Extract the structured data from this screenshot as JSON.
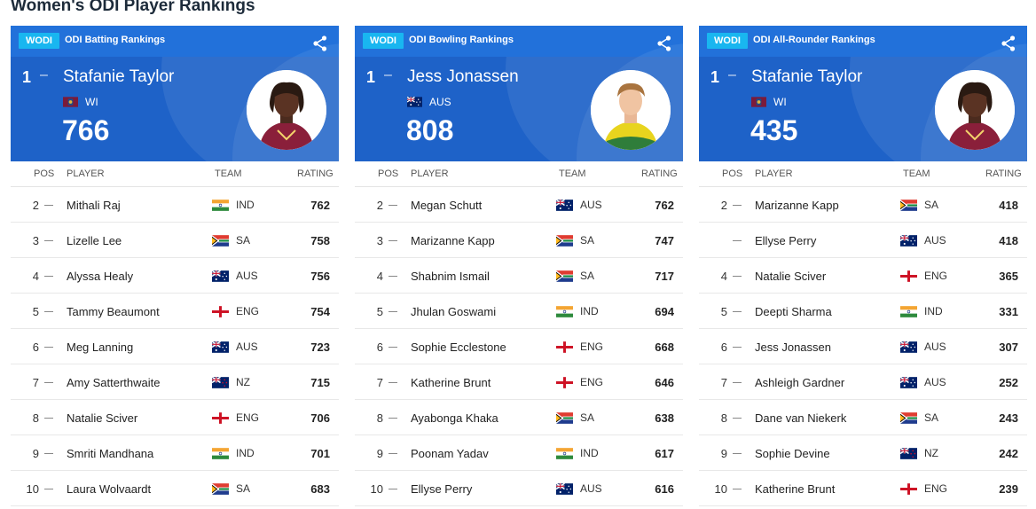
{
  "page": {
    "title": "Women's ODI Player Rankings"
  },
  "colors": {
    "hero": "#1e62c8",
    "topbar": "#2271da",
    "badge": "#19b6f0"
  },
  "headers": {
    "pos": "POS",
    "player": "PLAYER",
    "team": "TEAM",
    "rating": "RATING"
  },
  "cards": [
    {
      "badge": "WODI",
      "title": "ODI Batting Rankings",
      "leader": {
        "pos": "1",
        "name": "Stafanie Taylor",
        "team": "WI",
        "flag": "wi",
        "rating": "766",
        "avatar": "player-photo-wi"
      },
      "rows": [
        {
          "pos": "2",
          "name": "Mithali Raj",
          "team": "IND",
          "flag": "ind",
          "rating": "762"
        },
        {
          "pos": "3",
          "name": "Lizelle Lee",
          "team": "SA",
          "flag": "sa",
          "rating": "758"
        },
        {
          "pos": "4",
          "name": "Alyssa Healy",
          "team": "AUS",
          "flag": "aus",
          "rating": "756"
        },
        {
          "pos": "5",
          "name": "Tammy Beaumont",
          "team": "ENG",
          "flag": "eng",
          "rating": "754"
        },
        {
          "pos": "6",
          "name": "Meg Lanning",
          "team": "AUS",
          "flag": "aus",
          "rating": "723"
        },
        {
          "pos": "7",
          "name": "Amy Satterthwaite",
          "team": "NZ",
          "flag": "nz",
          "rating": "715"
        },
        {
          "pos": "8",
          "name": "Natalie Sciver",
          "team": "ENG",
          "flag": "eng",
          "rating": "706"
        },
        {
          "pos": "9",
          "name": "Smriti Mandhana",
          "team": "IND",
          "flag": "ind",
          "rating": "701"
        },
        {
          "pos": "10",
          "name": "Laura Wolvaardt",
          "team": "SA",
          "flag": "sa",
          "rating": "683"
        }
      ]
    },
    {
      "badge": "WODI",
      "title": "ODI Bowling Rankings",
      "leader": {
        "pos": "1",
        "name": "Jess Jonassen",
        "team": "AUS",
        "flag": "aus",
        "rating": "808",
        "avatar": "player-photo-aus"
      },
      "rows": [
        {
          "pos": "2",
          "name": "Megan Schutt",
          "team": "AUS",
          "flag": "aus",
          "rating": "762"
        },
        {
          "pos": "3",
          "name": "Marizanne Kapp",
          "team": "SA",
          "flag": "sa",
          "rating": "747"
        },
        {
          "pos": "4",
          "name": "Shabnim Ismail",
          "team": "SA",
          "flag": "sa",
          "rating": "717"
        },
        {
          "pos": "5",
          "name": "Jhulan Goswami",
          "team": "IND",
          "flag": "ind",
          "rating": "694"
        },
        {
          "pos": "6",
          "name": "Sophie Ecclestone",
          "team": "ENG",
          "flag": "eng",
          "rating": "668"
        },
        {
          "pos": "7",
          "name": "Katherine Brunt",
          "team": "ENG",
          "flag": "eng",
          "rating": "646"
        },
        {
          "pos": "8",
          "name": "Ayabonga Khaka",
          "team": "SA",
          "flag": "sa",
          "rating": "638"
        },
        {
          "pos": "9",
          "name": "Poonam Yadav",
          "team": "IND",
          "flag": "ind",
          "rating": "617"
        },
        {
          "pos": "10",
          "name": "Ellyse Perry",
          "team": "AUS",
          "flag": "aus",
          "rating": "616"
        }
      ]
    },
    {
      "badge": "WODI",
      "title": "ODI All-Rounder Rankings",
      "leader": {
        "pos": "1",
        "name": "Stafanie Taylor",
        "team": "WI",
        "flag": "wi",
        "rating": "435",
        "avatar": "player-photo-wi"
      },
      "rows": [
        {
          "pos": "2",
          "name": "Marizanne Kapp",
          "team": "SA",
          "flag": "sa",
          "rating": "418"
        },
        {
          "pos": "",
          "name": "Ellyse Perry",
          "team": "AUS",
          "flag": "aus",
          "rating": "418"
        },
        {
          "pos": "4",
          "name": "Natalie Sciver",
          "team": "ENG",
          "flag": "eng",
          "rating": "365"
        },
        {
          "pos": "5",
          "name": "Deepti Sharma",
          "team": "IND",
          "flag": "ind",
          "rating": "331"
        },
        {
          "pos": "6",
          "name": "Jess Jonassen",
          "team": "AUS",
          "flag": "aus",
          "rating": "307"
        },
        {
          "pos": "7",
          "name": "Ashleigh Gardner",
          "team": "AUS",
          "flag": "aus",
          "rating": "252"
        },
        {
          "pos": "8",
          "name": "Dane van Niekerk",
          "team": "SA",
          "flag": "sa",
          "rating": "243"
        },
        {
          "pos": "9",
          "name": "Sophie Devine",
          "team": "NZ",
          "flag": "nz",
          "rating": "242"
        },
        {
          "pos": "10",
          "name": "Katherine Brunt",
          "team": "ENG",
          "flag": "eng",
          "rating": "239"
        }
      ]
    }
  ]
}
